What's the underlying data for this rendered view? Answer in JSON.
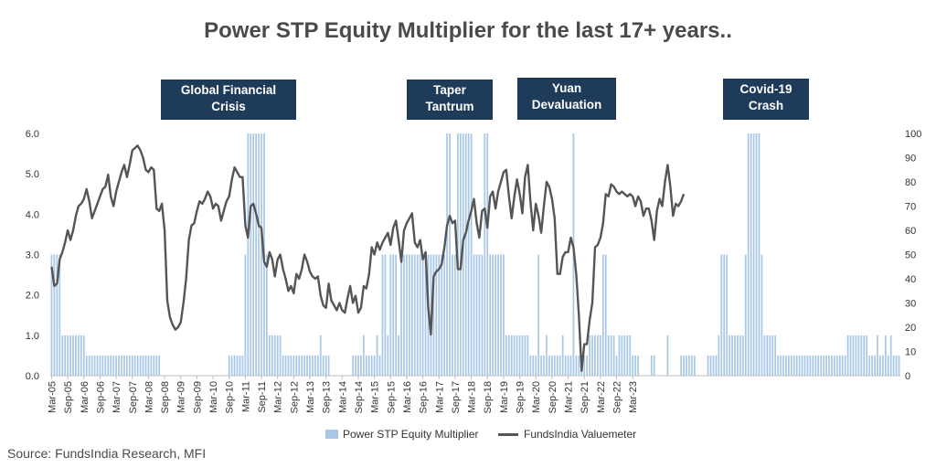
{
  "colors": {
    "bar": "#a9c8e8",
    "line": "#555555",
    "annotation_bg": "#1f3b5a",
    "title": "#4a4a4a"
  },
  "source": "Source: FundsIndia Research, MFI",
  "chart_data": {
    "type": "bar+line",
    "title": "Power STP Equity Multiplier for the last 17+ years..",
    "x_tick_labels": [
      "Mar-05",
      "Sep-05",
      "Mar-06",
      "Sep-06",
      "Mar-07",
      "Sep-07",
      "Mar-08",
      "Sep-08",
      "Mar-09",
      "Sep-09",
      "Mar-10",
      "Sep-10",
      "Mar-11",
      "Sep-11",
      "Mar-12",
      "Sep-12",
      "Mar-13",
      "Sep-13",
      "Mar-14",
      "Sep-14",
      "Mar-15",
      "Sep-15",
      "Mar-16",
      "Sep-16",
      "Mar-17",
      "Sep-17",
      "Mar-18",
      "Sep-18",
      "Mar-19",
      "Sep-19",
      "Mar-20",
      "Sep-20",
      "Mar-21",
      "Sep-21",
      "Mar-22",
      "Sep-22",
      "Mar-23"
    ],
    "y_left": {
      "min": 0,
      "max": 6,
      "ticks": [
        "0.0",
        "1.0",
        "2.0",
        "3.0",
        "4.0",
        "5.0",
        "6.0"
      ]
    },
    "y_right": {
      "min": 0,
      "max": 100,
      "ticks": [
        "0",
        "10",
        "20",
        "30",
        "40",
        "50",
        "60",
        "70",
        "80",
        "90",
        "100"
      ]
    },
    "legend": [
      "Power STP Equity Multiplier",
      "FundsIndia Valuemeter"
    ],
    "annotations": [
      {
        "lines": [
          "Global Financial",
          "Crisis"
        ]
      },
      {
        "lines": [
          "Taper",
          "Tantrum"
        ]
      },
      {
        "lines": [
          "Yuan",
          "Devaluation"
        ]
      },
      {
        "lines": [
          "Covid-19",
          "Crash"
        ]
      }
    ],
    "series": [
      {
        "name": "Power STP Equity Multiplier",
        "axis": "left",
        "type": "bar",
        "values": [
          3,
          3,
          3,
          3,
          1,
          1,
          1,
          1,
          1,
          1,
          1,
          1,
          1,
          0.5,
          0.5,
          0.5,
          0.5,
          0.5,
          0.5,
          0.5,
          0.5,
          0.5,
          0.5,
          0.5,
          0.5,
          0.5,
          0.5,
          0.5,
          0.5,
          0.5,
          0.5,
          0.5,
          0.5,
          0.5,
          0.5,
          0.5,
          0.5,
          0.5,
          0.5,
          0.5,
          0.5,
          0,
          0,
          0,
          0,
          0,
          0,
          0,
          0,
          0,
          0,
          0,
          0,
          0,
          0,
          0,
          0,
          0,
          0,
          0,
          0,
          0,
          0,
          0,
          0,
          0,
          0.5,
          0.5,
          0.5,
          0.5,
          0.5,
          0.5,
          3,
          6,
          6,
          6,
          6,
          6,
          6,
          6,
          3,
          1,
          1,
          1,
          1,
          1,
          0.5,
          0.5,
          0.5,
          0.5,
          0.5,
          0.5,
          0.5,
          0.5,
          0.5,
          0.5,
          0.5,
          0.5,
          0.5,
          0.5,
          1,
          0.5,
          0.5,
          0.5,
          0,
          0,
          0,
          0,
          0,
          0,
          0,
          0,
          0.5,
          0.5,
          0.5,
          0.5,
          1,
          0.5,
          0.5,
          0.5,
          0.5,
          1,
          0.5,
          3,
          3,
          1,
          3,
          3,
          3,
          1,
          3,
          3,
          3,
          3,
          3,
          3,
          3,
          3,
          3,
          3,
          3,
          3,
          3,
          3,
          3,
          3,
          3,
          6,
          6,
          3,
          3,
          6,
          6,
          6,
          6,
          6,
          6,
          3,
          3,
          3,
          3,
          6,
          6,
          3,
          3,
          3,
          3,
          3,
          3,
          1,
          1,
          1,
          1,
          1,
          1,
          1,
          1,
          1,
          0.5,
          0.5,
          0.5,
          3,
          0.5,
          0.5,
          1,
          0.5,
          0.5,
          0.5,
          0.5,
          0.5,
          1,
          0.5,
          0.5,
          0.5,
          6,
          0.5,
          0.5,
          0.5,
          0.5,
          0.5,
          1,
          1,
          1,
          1,
          1,
          3,
          3,
          1,
          1,
          1,
          0.5,
          1,
          1,
          1,
          1,
          1,
          0.5,
          0.5,
          0.5,
          0,
          0,
          0,
          0,
          0.5,
          0.5,
          0,
          0,
          0,
          0,
          1,
          0,
          0,
          0,
          0,
          0.5,
          0.5,
          0.5,
          0.5,
          0.5,
          0.5,
          0,
          0,
          0,
          0,
          0.5,
          0.5,
          0.5,
          0.5,
          1,
          3,
          3,
          3,
          1,
          1,
          1,
          1,
          1,
          1,
          3,
          6,
          6,
          6,
          6,
          6,
          3,
          1,
          1,
          1,
          1,
          1,
          0.5,
          0.5,
          0.5,
          0.5,
          0.5,
          0.5,
          0.5,
          0.5,
          0.5,
          0.5,
          0.5,
          0.5,
          0.5,
          0.5,
          0.5,
          0.5,
          0.5,
          0.5,
          0.5,
          0.5,
          0.5,
          0.5,
          0.5,
          0.5,
          0.5,
          0.5,
          1,
          1,
          1,
          1,
          1,
          1,
          1,
          1,
          0.5,
          0.5,
          0.5,
          1,
          0.5,
          0.5,
          1,
          0.5,
          1,
          0.5,
          0.5,
          0.5
        ]
      },
      {
        "name": "FundsIndia Valuemeter",
        "axis": "right",
        "type": "line",
        "points": [
          [
            0,
            45
          ],
          [
            1,
            37
          ],
          [
            2,
            38
          ],
          [
            3,
            48
          ],
          [
            4,
            51
          ],
          [
            5,
            55
          ],
          [
            6,
            60
          ],
          [
            7,
            56
          ],
          [
            8,
            60
          ],
          [
            9,
            66
          ],
          [
            10,
            70
          ],
          [
            11,
            71
          ],
          [
            12,
            73
          ],
          [
            13,
            77
          ],
          [
            14,
            72
          ],
          [
            15,
            65
          ],
          [
            16,
            68
          ],
          [
            17,
            71
          ],
          [
            18,
            74
          ],
          [
            19,
            77
          ],
          [
            20,
            78
          ],
          [
            21,
            83
          ],
          [
            22,
            74
          ],
          [
            23,
            70
          ],
          [
            24,
            76
          ],
          [
            25,
            80
          ],
          [
            26,
            84
          ],
          [
            27,
            87
          ],
          [
            28,
            82
          ],
          [
            29,
            87
          ],
          [
            30,
            93
          ],
          [
            31,
            94
          ],
          [
            32,
            95
          ],
          [
            33,
            93
          ],
          [
            34,
            90
          ],
          [
            35,
            85
          ],
          [
            36,
            84
          ],
          [
            37,
            86
          ],
          [
            38,
            85
          ],
          [
            39,
            69
          ],
          [
            40,
            68
          ],
          [
            41,
            71
          ],
          [
            42,
            60
          ],
          [
            43,
            31
          ],
          [
            44,
            24
          ],
          [
            45,
            21
          ],
          [
            46,
            19
          ],
          [
            47,
            20
          ],
          [
            48,
            22
          ],
          [
            49,
            30
          ],
          [
            50,
            40
          ],
          [
            51,
            56
          ],
          [
            52,
            62
          ],
          [
            53,
            63
          ],
          [
            54,
            68
          ],
          [
            55,
            72
          ],
          [
            56,
            71
          ],
          [
            57,
            73
          ],
          [
            58,
            76
          ],
          [
            59,
            74
          ],
          [
            60,
            69
          ],
          [
            61,
            71
          ],
          [
            62,
            70
          ],
          [
            63,
            64
          ],
          [
            64,
            68
          ],
          [
            65,
            72
          ],
          [
            66,
            74
          ],
          [
            67,
            81
          ],
          [
            68,
            86
          ],
          [
            69,
            84
          ],
          [
            70,
            82
          ],
          [
            71,
            82
          ],
          [
            72,
            62
          ],
          [
            73,
            57
          ],
          [
            74,
            70
          ],
          [
            75,
            71
          ],
          [
            76,
            67
          ],
          [
            77,
            62
          ],
          [
            78,
            61
          ],
          [
            79,
            47
          ],
          [
            80,
            45
          ],
          [
            81,
            51
          ],
          [
            82,
            48
          ],
          [
            83,
            41
          ],
          [
            84,
            48
          ],
          [
            85,
            50
          ],
          [
            86,
            44
          ],
          [
            87,
            40
          ],
          [
            88,
            35
          ],
          [
            89,
            37
          ],
          [
            90,
            34
          ],
          [
            91,
            42
          ],
          [
            92,
            40
          ],
          [
            93,
            44
          ],
          [
            94,
            50
          ],
          [
            95,
            47
          ],
          [
            96,
            43
          ],
          [
            97,
            41
          ],
          [
            98,
            40
          ],
          [
            99,
            41
          ],
          [
            100,
            33
          ],
          [
            101,
            29
          ],
          [
            102,
            28
          ],
          [
            103,
            38
          ],
          [
            104,
            31
          ],
          [
            105,
            29
          ],
          [
            106,
            27
          ],
          [
            107,
            30
          ],
          [
            108,
            27
          ],
          [
            109,
            26
          ],
          [
            110,
            32
          ],
          [
            111,
            37
          ],
          [
            112,
            30
          ],
          [
            113,
            33
          ],
          [
            114,
            26
          ],
          [
            115,
            28
          ],
          [
            116,
            37
          ],
          [
            117,
            36
          ],
          [
            118,
            42
          ],
          [
            119,
            53
          ],
          [
            120,
            50
          ],
          [
            121,
            55
          ],
          [
            122,
            52
          ],
          [
            123,
            55
          ],
          [
            124,
            57
          ],
          [
            125,
            59
          ],
          [
            126,
            54
          ],
          [
            127,
            61
          ],
          [
            128,
            64
          ],
          [
            129,
            56
          ],
          [
            130,
            47
          ],
          [
            131,
            60
          ],
          [
            132,
            63
          ],
          [
            133,
            65
          ],
          [
            134,
            67
          ],
          [
            135,
            55
          ],
          [
            136,
            53
          ],
          [
            137,
            56
          ],
          [
            138,
            48
          ],
          [
            139,
            51
          ],
          [
            140,
            28
          ],
          [
            141,
            17
          ],
          [
            142,
            41
          ],
          [
            143,
            43
          ],
          [
            144,
            44
          ],
          [
            145,
            46
          ],
          [
            146,
            53
          ],
          [
            147,
            62
          ],
          [
            148,
            66
          ],
          [
            149,
            63
          ],
          [
            150,
            64
          ],
          [
            151,
            44
          ],
          [
            152,
            44
          ],
          [
            153,
            56
          ],
          [
            154,
            59
          ],
          [
            155,
            64
          ],
          [
            156,
            68
          ],
          [
            157,
            73
          ],
          [
            158,
            63
          ],
          [
            159,
            57
          ],
          [
            160,
            68
          ],
          [
            161,
            69
          ],
          [
            162,
            61
          ],
          [
            163,
            74
          ],
          [
            164,
            76
          ],
          [
            165,
            69
          ],
          [
            166,
            76
          ],
          [
            167,
            80
          ],
          [
            168,
            84
          ],
          [
            169,
            85
          ],
          [
            170,
            74
          ],
          [
            171,
            65
          ],
          [
            172,
            74
          ],
          [
            173,
            81
          ],
          [
            174,
            75
          ],
          [
            175,
            67
          ],
          [
            176,
            82
          ],
          [
            177,
            87
          ],
          [
            178,
            72
          ],
          [
            179,
            60
          ],
          [
            180,
            71
          ],
          [
            181,
            66
          ],
          [
            182,
            59
          ],
          [
            183,
            70
          ],
          [
            184,
            80
          ],
          [
            185,
            78
          ],
          [
            186,
            73
          ],
          [
            187,
            65
          ],
          [
            188,
            42
          ],
          [
            189,
            42
          ],
          [
            190,
            49
          ],
          [
            191,
            51
          ],
          [
            192,
            51
          ],
          [
            193,
            57
          ],
          [
            194,
            53
          ],
          [
            195,
            42
          ],
          [
            196,
            25
          ],
          [
            197,
            2
          ],
          [
            198,
            13
          ],
          [
            199,
            13
          ],
          [
            200,
            23
          ],
          [
            201,
            30
          ],
          [
            202,
            53
          ],
          [
            203,
            54
          ],
          [
            204,
            57
          ],
          [
            205,
            63
          ],
          [
            206,
            75
          ],
          [
            207,
            74
          ],
          [
            208,
            79
          ],
          [
            209,
            78
          ],
          [
            210,
            76
          ],
          [
            211,
            75
          ],
          [
            212,
            76
          ],
          [
            213,
            75
          ],
          [
            214,
            74
          ],
          [
            215,
            75
          ],
          [
            216,
            74
          ],
          [
            217,
            70
          ],
          [
            218,
            74
          ],
          [
            219,
            72
          ],
          [
            220,
            66
          ],
          [
            221,
            69
          ],
          [
            222,
            69
          ],
          [
            223,
            64
          ],
          [
            224,
            56
          ],
          [
            225,
            68
          ],
          [
            226,
            73
          ],
          [
            227,
            70
          ],
          [
            228,
            80
          ],
          [
            229,
            87
          ],
          [
            230,
            78
          ],
          [
            231,
            66
          ],
          [
            232,
            71
          ],
          [
            233,
            70
          ],
          [
            234,
            72
          ],
          [
            235,
            75
          ]
        ]
      }
    ]
  }
}
